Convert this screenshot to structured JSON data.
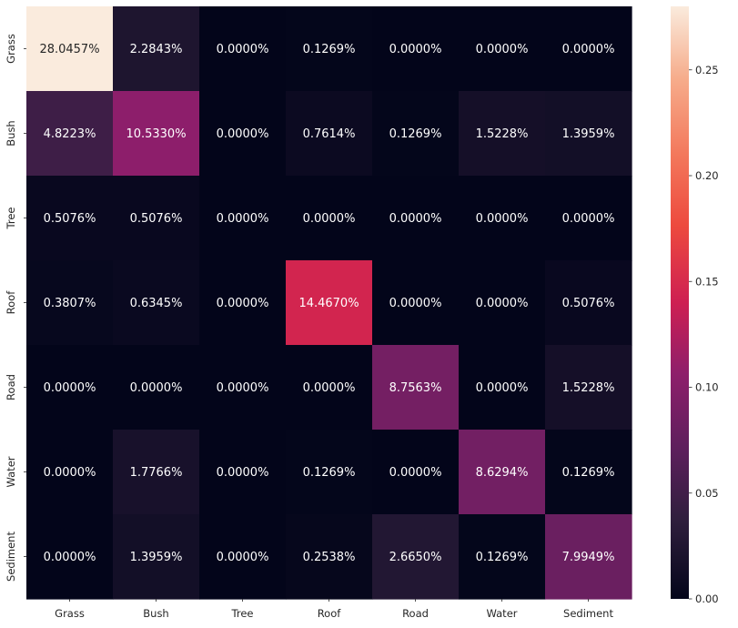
{
  "chart_data": {
    "type": "heatmap",
    "x_categories": [
      "Grass",
      "Bush",
      "Tree",
      "Roof",
      "Road",
      "Water",
      "Sediment"
    ],
    "y_categories": [
      "Grass",
      "Bush",
      "Tree",
      "Roof",
      "Road",
      "Water",
      "Sediment"
    ],
    "values": [
      [
        0.280457,
        0.022843,
        0.0,
        0.001269,
        0.0,
        0.0,
        0.0
      ],
      [
        0.048223,
        0.10533,
        0.0,
        0.007614,
        0.001269,
        0.015228,
        0.013959
      ],
      [
        0.005076,
        0.005076,
        0.0,
        0.0,
        0.0,
        0.0,
        0.0
      ],
      [
        0.003807,
        0.006345,
        0.0,
        0.14467,
        0.0,
        0.0,
        0.005076
      ],
      [
        0.0,
        0.0,
        0.0,
        0.0,
        0.087563,
        0.0,
        0.015228
      ],
      [
        0.0,
        0.017766,
        0.0,
        0.001269,
        0.0,
        0.086294,
        0.001269
      ],
      [
        0.0,
        0.013959,
        0.0,
        0.002538,
        0.02665,
        0.001269,
        0.079949
      ]
    ],
    "cell_labels": [
      [
        "28.0457%",
        "2.2843%",
        "0.0000%",
        "0.1269%",
        "0.0000%",
        "0.0000%",
        "0.0000%"
      ],
      [
        "4.8223%",
        "10.5330%",
        "0.0000%",
        "0.7614%",
        "0.1269%",
        "1.5228%",
        "1.3959%"
      ],
      [
        "0.5076%",
        "0.5076%",
        "0.0000%",
        "0.0000%",
        "0.0000%",
        "0.0000%",
        "0.0000%"
      ],
      [
        "0.3807%",
        "0.6345%",
        "0.0000%",
        "14.4670%",
        "0.0000%",
        "0.0000%",
        "0.5076%"
      ],
      [
        "0.0000%",
        "0.0000%",
        "0.0000%",
        "0.0000%",
        "8.7563%",
        "0.0000%",
        "1.5228%"
      ],
      [
        "0.0000%",
        "1.7766%",
        "0.0000%",
        "0.1269%",
        "0.0000%",
        "8.6294%",
        "0.1269%"
      ],
      [
        "0.0000%",
        "1.3959%",
        "0.0000%",
        "0.2538%",
        "2.6650%",
        "0.1269%",
        "7.9949%"
      ]
    ],
    "colorbar": {
      "min": 0.0,
      "max": 0.28,
      "ticks": [
        0.0,
        0.05,
        0.1,
        0.15,
        0.2,
        0.25
      ],
      "tick_labels": [
        "0.00",
        "0.05",
        "0.10",
        "0.15",
        "0.20",
        "0.25"
      ]
    },
    "colormap_stops": [
      {
        "t": 0.0,
        "color": "#03051a"
      },
      {
        "t": 0.13,
        "color": "#2e1e3c"
      },
      {
        "t": 0.25,
        "color": "#5c1f5c"
      },
      {
        "t": 0.38,
        "color": "#8e1e6b"
      },
      {
        "t": 0.5,
        "color": "#ce1f52"
      },
      {
        "t": 0.63,
        "color": "#ed4a3e"
      },
      {
        "t": 0.75,
        "color": "#f3785c"
      },
      {
        "t": 0.88,
        "color": "#f6ad8c"
      },
      {
        "t": 1.0,
        "color": "#faebdd"
      }
    ],
    "title": "",
    "xlabel": "",
    "ylabel": "",
    "grid": false,
    "colorbar_placement": "right"
  }
}
